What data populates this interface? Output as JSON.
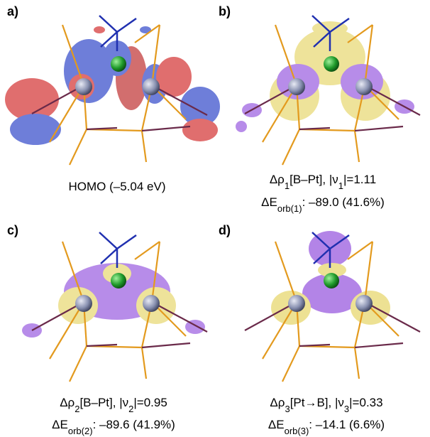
{
  "panels": [
    {
      "label": "a)",
      "caption": [
        [
          "HOMO (–5.04 eV)"
        ]
      ]
    },
    {
      "label": "b)",
      "caption": [
        [
          "Δρ",
          "1",
          "[B–Pt], |ν",
          "1",
          "|=1.11"
        ],
        [
          "ΔE",
          "orb(1)",
          ": –89.0 (41.6%)"
        ]
      ]
    },
    {
      "label": "c)",
      "caption": [
        [
          "Δρ",
          "2",
          "[B–Pt], |ν",
          "2",
          "|=0.95"
        ],
        [
          "ΔE",
          "orb(2)",
          ": –89.6 (41.9%)"
        ]
      ]
    },
    {
      "label": "d)",
      "caption": [
        [
          "Δρ",
          "3",
          "[Pt→B], |ν",
          "3",
          "|=0.33"
        ],
        [
          "ΔE",
          "orb(3)",
          ": –14.1 (6.6%)"
        ]
      ]
    }
  ]
}
